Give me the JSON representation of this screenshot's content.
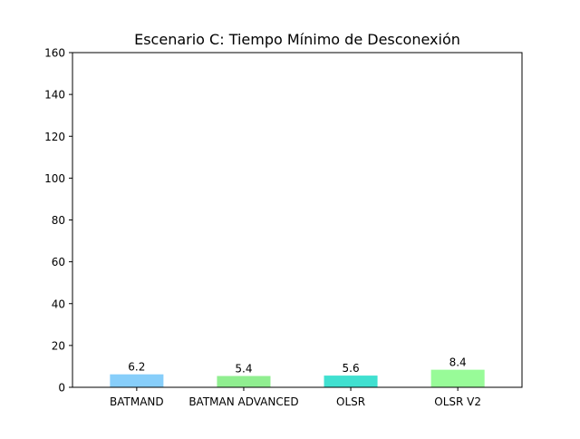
{
  "chart_data": {
    "type": "bar",
    "title": "Escenario C: Tiempo Mínimo de Desconexión",
    "xlabel": "",
    "ylabel": "",
    "categories": [
      "BATMAND",
      "BATMAN ADVANCED",
      "OLSR",
      "OLSR V2"
    ],
    "values": [
      6.2,
      5.4,
      5.6,
      8.4
    ],
    "value_labels": [
      "6.2",
      "5.4",
      "5.6",
      "8.4"
    ],
    "colors": [
      "#87CEFA",
      "#90EE90",
      "#40E0D0",
      "#98FB98"
    ],
    "ylim": [
      0,
      160
    ],
    "yticks": [
      0,
      20,
      40,
      60,
      80,
      100,
      120,
      140,
      160
    ],
    "grid": false,
    "legend": "none"
  }
}
